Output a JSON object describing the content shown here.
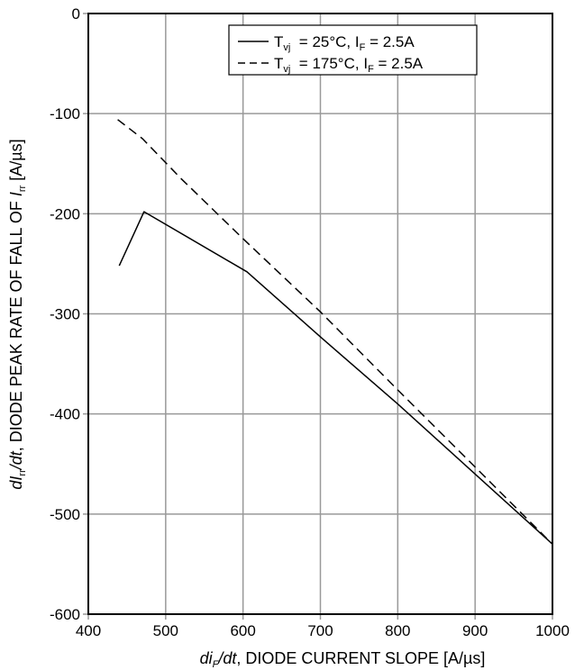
{
  "chart_data": {
    "type": "line",
    "x_axis": {
      "range": [
        400,
        1000
      ],
      "ticks": [
        400,
        500,
        600,
        700,
        800,
        900,
        1000
      ],
      "tick_labels": [
        "400",
        "500",
        "600",
        "700",
        "800",
        "900",
        "1000"
      ],
      "label": {
        "pre": "di",
        "sub": "F",
        "post": "/dt",
        "rest": ", DIODE CURRENT SLOPE [A/µs]"
      }
    },
    "y_axis": {
      "range": [
        -600,
        0
      ],
      "ticks": [
        0,
        -100,
        -200,
        -300,
        -400,
        -500,
        -600
      ],
      "tick_labels": [
        "0",
        "-100",
        "-200",
        "-300",
        "-400",
        "-500",
        "-600"
      ],
      "label": {
        "pre": "dI",
        "sub": "rr",
        "post": "/dt",
        "rest": ", DIODE PEAK RATE OF FALL OF ",
        "sym": "I",
        "sym_sub": "rr",
        "end": " [A/µs]"
      }
    },
    "grid": true,
    "legend_position": "top-right",
    "series": [
      {
        "name": "Tvj = 25°C, IF = 2.5A",
        "legend": {
          "t": "T",
          "t_sub": "vj",
          "mid": "  = 25°C, I",
          "i_sub": "F",
          "end": " = 2.5A"
        },
        "style": "solid",
        "x": [
          440,
          472,
          605,
          700,
          800,
          900,
          1000
        ],
        "y": [
          -252,
          -198,
          -258,
          -323,
          -390,
          -460,
          -530
        ]
      },
      {
        "name": "Tvj = 175°C, IF = 2.5A",
        "legend": {
          "t": "T",
          "t_sub": "vj",
          "mid": "  = 175°C, I",
          "i_sub": "F",
          "end": " = 2.5A"
        },
        "style": "dashed",
        "x": [
          438,
          470,
          520,
          600,
          700,
          800,
          900,
          1000
        ],
        "y": [
          -106,
          -125,
          -165,
          -225,
          -298,
          -376,
          -453,
          -530
        ]
      }
    ]
  }
}
